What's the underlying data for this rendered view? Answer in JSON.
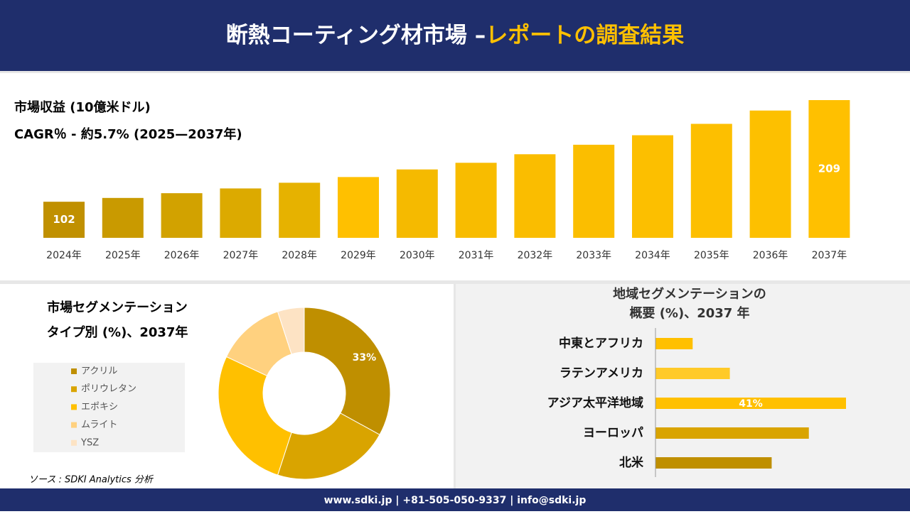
{
  "header": {
    "title": "断熱コーティング材市場 –",
    "title_highlight": "レポートの調査結果"
  },
  "chart_data": [
    {
      "type": "bar",
      "title": "市場収益 (10億米ドル)",
      "subtitle": "CAGR％ - 約5.7% (2025—2037年)",
      "categories": [
        "2024年",
        "2025年",
        "2026年",
        "2027年",
        "2028年",
        "2029年",
        "2030年",
        "2031年",
        "2032年",
        "2033年",
        "2034年",
        "2035年",
        "2036年",
        "2037年"
      ],
      "values": [
        102,
        106,
        111,
        116,
        122,
        128,
        136,
        143,
        152,
        162,
        172,
        184,
        198,
        209
      ],
      "value_labels": [
        "102",
        null,
        null,
        null,
        null,
        null,
        null,
        null,
        null,
        null,
        null,
        null,
        null,
        "209"
      ],
      "colors": [
        "#c09000",
        "#c99a00",
        "#d2a200",
        "#dcaa00",
        "#e6b200",
        "#ffc000",
        "#f5ba00",
        "#f8bc00",
        "#fabd00",
        "#fbbe00",
        "#fcbf00",
        "#fdbf00",
        "#fdc000",
        "#ffc000"
      ],
      "ylim": [
        64,
        209
      ]
    },
    {
      "type": "pie",
      "title": [
        "市場セグメンテーション",
        "タイプ別 (%)、2037年"
      ],
      "categories": [
        "アクリル",
        "ポリウレタン",
        "エポキシ",
        "ムライト",
        "YSZ"
      ],
      "values": [
        33,
        22,
        27,
        13,
        5
      ],
      "value_labels": [
        "33%",
        null,
        null,
        null,
        null
      ],
      "colors": [
        "#bf8f00",
        "#d9a400",
        "#ffc000",
        "#ffd17f",
        "#fde3c4"
      ]
    },
    {
      "type": "hbar",
      "title": [
        "地域セグメンテーションの",
        "概要 (%)、2037 年"
      ],
      "categories": [
        "中東とアフリカ",
        "ラテンアメリカ",
        "アジア太平洋地域",
        "ヨーロッパ",
        "北米"
      ],
      "values": [
        8,
        16,
        41,
        33,
        25
      ],
      "value_labels": [
        null,
        null,
        "41%",
        null,
        null
      ],
      "colors": [
        "#ffc000",
        "#ffca28",
        "#ffc000",
        "#d9a400",
        "#bf8f00"
      ],
      "xlim": [
        0,
        41
      ]
    }
  ],
  "source": "ソース : SDKI Analytics 分析",
  "footer": "www.sdki.jp | +81-505-050-9337 | info@sdki.jp"
}
